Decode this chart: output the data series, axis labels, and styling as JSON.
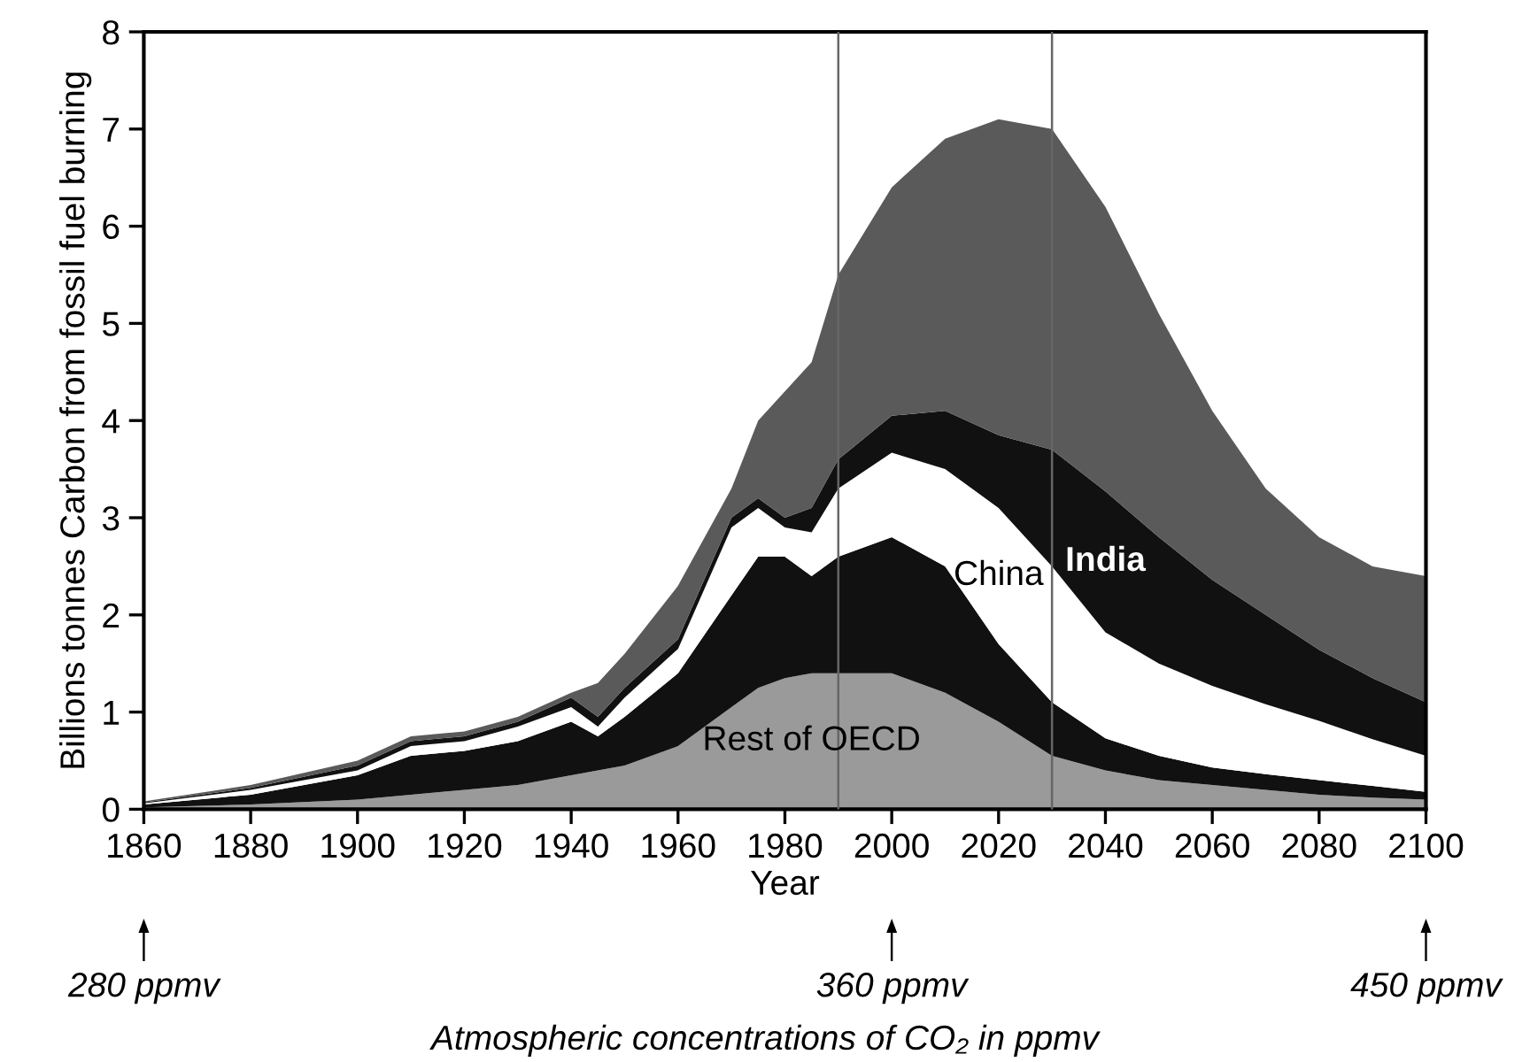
{
  "chart_data": {
    "type": "area",
    "stacked": true,
    "xlabel": "Year",
    "ylabel": "Billions tonnes Carbon from fossil fuel burning",
    "x": [
      1860,
      1880,
      1900,
      1910,
      1920,
      1930,
      1940,
      1945,
      1950,
      1960,
      1970,
      1975,
      1980,
      1985,
      1990,
      2000,
      2010,
      2020,
      2030,
      2040,
      2050,
      2060,
      2070,
      2080,
      2090,
      2100
    ],
    "series": [
      {
        "name": "Rest of OECD",
        "color": "#9a9a9a",
        "values": [
          0.02,
          0.05,
          0.1,
          0.15,
          0.2,
          0.25,
          0.35,
          0.4,
          0.45,
          0.65,
          1.05,
          1.25,
          1.35,
          1.4,
          1.4,
          1.4,
          1.2,
          0.9,
          0.55,
          0.4,
          0.3,
          0.25,
          0.2,
          0.15,
          0.12,
          0.1
        ]
      },
      {
        "color": "#111111",
        "values": [
          0.03,
          0.1,
          0.25,
          0.4,
          0.4,
          0.45,
          0.55,
          0.35,
          0.5,
          0.75,
          1.15,
          1.35,
          1.25,
          1.0,
          1.2,
          1.4,
          1.3,
          0.8,
          0.55,
          0.33,
          0.25,
          0.18,
          0.16,
          0.15,
          0.12,
          0.08
        ]
      },
      {
        "name": "China",
        "color": "#ffffff",
        "values": [
          0.01,
          0.05,
          0.05,
          0.1,
          0.1,
          0.15,
          0.15,
          0.1,
          0.2,
          0.25,
          0.7,
          0.5,
          0.3,
          0.45,
          0.7,
          0.87,
          1.0,
          1.4,
          1.4,
          1.09,
          0.95,
          0.84,
          0.72,
          0.61,
          0.48,
          0.37
        ]
      },
      {
        "name": "India",
        "color": "#111111",
        "values": [
          0.01,
          0.02,
          0.05,
          0.05,
          0.05,
          0.05,
          0.1,
          0.1,
          0.1,
          0.1,
          0.1,
          0.1,
          0.1,
          0.25,
          0.3,
          0.38,
          0.6,
          0.75,
          1.2,
          1.45,
          1.3,
          1.09,
          0.92,
          0.73,
          0.63,
          0.55
        ]
      },
      {
        "color": "#5a5a5a",
        "values": [
          0.01,
          0.03,
          0.05,
          0.05,
          0.05,
          0.05,
          0.05,
          0.35,
          0.35,
          0.55,
          0.3,
          0.8,
          1.3,
          1.5,
          1.9,
          2.35,
          2.8,
          3.25,
          3.3,
          2.93,
          2.3,
          1.74,
          1.3,
          1.16,
          1.15,
          1.3
        ]
      }
    ],
    "xlim": [
      1860,
      2100
    ],
    "xticks": [
      1860,
      1880,
      1900,
      1920,
      1940,
      1960,
      1980,
      2000,
      2020,
      2040,
      2060,
      2080,
      2100
    ],
    "ylim": [
      0,
      8
    ],
    "yticks": [
      0,
      1,
      2,
      3,
      4,
      5,
      6,
      7,
      8
    ],
    "ref_lines": [
      {
        "axis": "x",
        "value": 1990,
        "color": "#666666"
      },
      {
        "axis": "x",
        "value": 2030,
        "color": "#666666"
      }
    ],
    "annotations": [
      "280 ppmv",
      "360 ppmv",
      "450 ppmv",
      "Atmospheric concentrations of CO₂ in ppmv"
    ],
    "grid": false,
    "legend": false
  }
}
